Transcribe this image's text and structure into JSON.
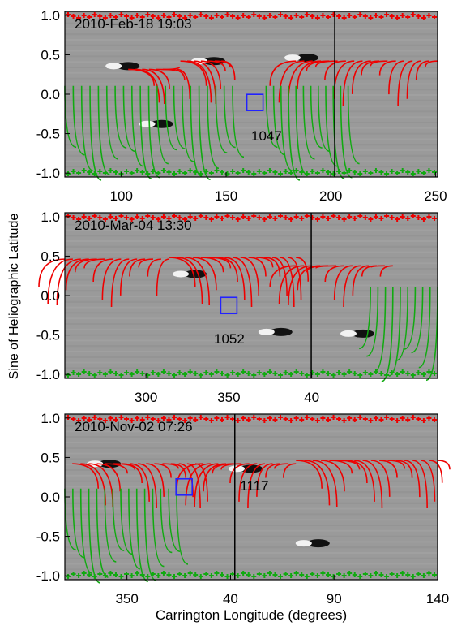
{
  "figure": {
    "xlabel": "Carrington Longitude (degrees)",
    "ylabel": "Sine of Heliographic Latitude"
  },
  "chart_data": [
    {
      "type": "magnetogram",
      "title": "2010-Feb-18 19:03",
      "annotation": "1047",
      "xlim": [
        73,
        251
      ],
      "xticks": [
        100,
        150,
        200,
        250
      ],
      "ylim": [
        -1.05,
        1.05
      ],
      "yticks": [
        {
          "value": 1,
          "label": "1.0"
        },
        {
          "value": 0.5,
          "label": "0.5"
        },
        {
          "value": 0,
          "label": "0.0"
        },
        {
          "value": -0.5,
          "label": "-0.5"
        },
        {
          "value": -1,
          "label": "-1.0"
        }
      ]
    },
    {
      "type": "magnetogram",
      "title": "2010-Mar-04 13:30",
      "annotation": "1052",
      "xlim": [
        251,
        476
      ],
      "xticks": [
        300,
        350,
        {
          "value": 400,
          "label": "40"
        }
      ],
      "ylim": [
        -1.05,
        1.05
      ],
      "yticks": [
        {
          "value": 1,
          "label": "1.0"
        },
        {
          "value": 0.5,
          "label": "0.5"
        },
        {
          "value": 0,
          "label": "0.0"
        },
        {
          "value": -0.5,
          "label": "-0.5"
        },
        {
          "value": -1,
          "label": "-1.0"
        }
      ]
    },
    {
      "type": "magnetogram",
      "title": "2010-Nov-02 07:26",
      "annotation": "1117",
      "xlim": [
        320,
        500
      ],
      "xticks": [
        350,
        {
          "value": 400,
          "label": "40"
        },
        {
          "value": 450,
          "label": "90"
        },
        {
          "value": 500,
          "label": "140"
        }
      ],
      "ylim": [
        -1.05,
        1.05
      ],
      "yticks": [
        {
          "value": 1,
          "label": "1.0"
        },
        {
          "value": 0.5,
          "label": "0.5"
        },
        {
          "value": 0,
          "label": "0.0"
        },
        {
          "value": -0.5,
          "label": "-0.5"
        },
        {
          "value": -1,
          "label": "-1.0"
        }
      ]
    }
  ]
}
